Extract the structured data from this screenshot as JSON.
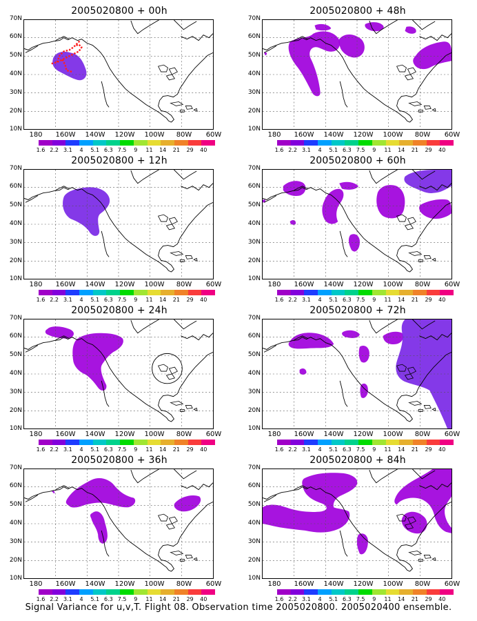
{
  "panels": [
    {
      "title": "2005020800 + 00h"
    },
    {
      "title": "2005020800 + 48h"
    },
    {
      "title": "2005020800 + 12h"
    },
    {
      "title": "2005020800 + 60h"
    },
    {
      "title": "2005020800 + 24h"
    },
    {
      "title": "2005020800 + 72h"
    },
    {
      "title": "2005020800 + 36h"
    },
    {
      "title": "2005020800 + 84h"
    }
  ],
  "lat_labels": [
    "70N",
    "60N",
    "50N",
    "40N",
    "30N",
    "20N",
    "10N"
  ],
  "lon_labels": [
    "180",
    "160W",
    "140W",
    "120W",
    "100W",
    "80W",
    "60W"
  ],
  "colorbar": {
    "labels": [
      "1.6",
      "2.2",
      "3.1",
      "4",
      "5.1",
      "6.3",
      "7.5",
      "9",
      "11",
      "14",
      "21",
      "29",
      "40"
    ],
    "colors": [
      "#a000c8",
      "#8200dc",
      "#1e3cff",
      "#00a0ff",
      "#00c8c8",
      "#00d28c",
      "#00dc00",
      "#a0e632",
      "#e6dc32",
      "#e6af2d",
      "#f08228",
      "#fa3c3c",
      "#f00082"
    ]
  },
  "field_color": "#a000dc",
  "field_color_strong": "#7a28e6",
  "caption": "Signal Variance for u,v,T. Flight 08. Observation time 2005020800. 2005020400 ensemble."
}
